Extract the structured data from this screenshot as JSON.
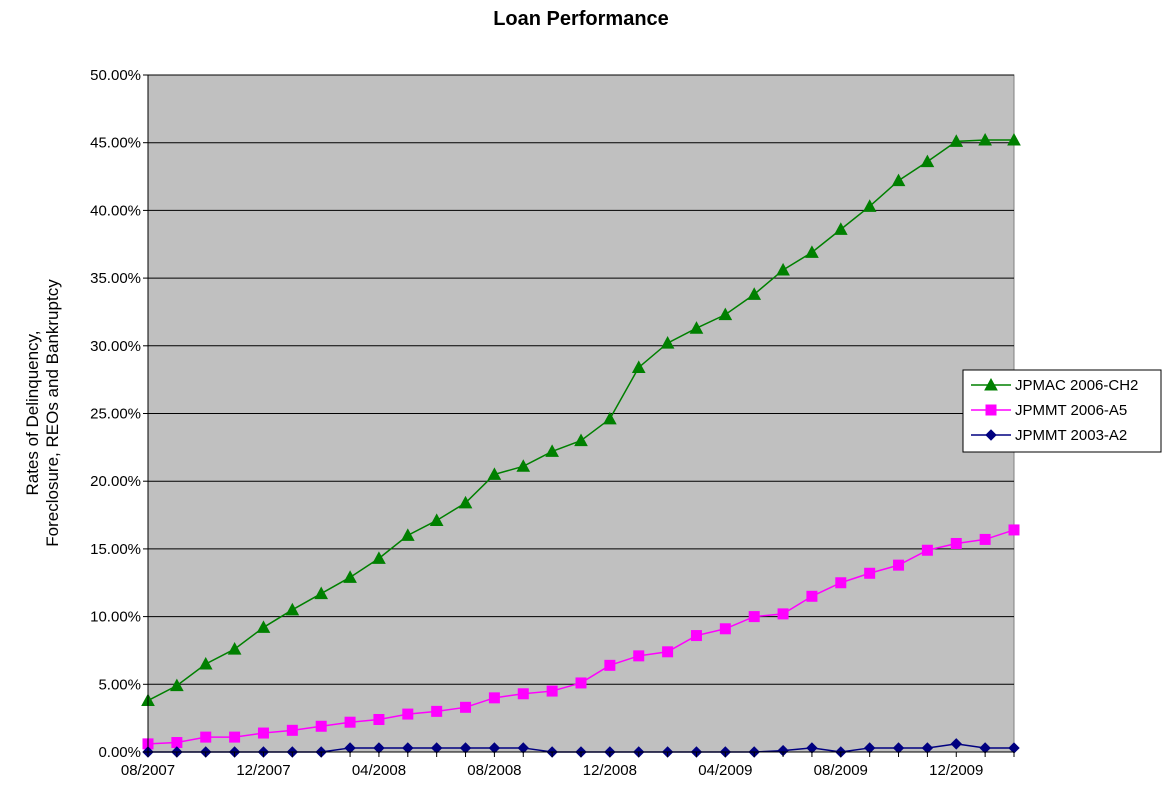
{
  "chart_data": {
    "type": "line",
    "title": "Loan Performance",
    "xlabel": "",
    "ylabel_lines": [
      "Rates of Delinquency,",
      "Foreclosure, REOs and Bankruptcy"
    ],
    "y_ticks": [
      "0.00%",
      "5.00%",
      "10.00%",
      "15.00%",
      "20.00%",
      "25.00%",
      "30.00%",
      "35.00%",
      "40.00%",
      "45.00%",
      "50.00%"
    ],
    "ylim": [
      0,
      50
    ],
    "x_tick_labels": [
      "08/2007",
      "12/2007",
      "04/2008",
      "08/2008",
      "12/2008",
      "04/2009",
      "08/2009",
      "12/2009"
    ],
    "x_tick_every": 4,
    "grid": true,
    "legend": "right",
    "plot_background": "#c0c0c0",
    "x": [
      "08/2007",
      "09/2007",
      "10/2007",
      "11/2007",
      "12/2007",
      "01/2008",
      "02/2008",
      "03/2008",
      "04/2008",
      "05/2008",
      "06/2008",
      "07/2008",
      "08/2008",
      "09/2008",
      "10/2008",
      "11/2008",
      "12/2008",
      "01/2009",
      "02/2009",
      "03/2009",
      "04/2009",
      "05/2009",
      "06/2009",
      "07/2009",
      "08/2009",
      "09/2009",
      "10/2009",
      "11/2009",
      "12/2009",
      "01/2010",
      "02/2010"
    ],
    "series": [
      {
        "name": "JPMAC 2006-CH2",
        "color": "#008000",
        "marker": "triangle",
        "values": [
          3.8,
          4.9,
          6.5,
          7.6,
          9.2,
          10.5,
          11.7,
          12.9,
          14.3,
          16.0,
          17.1,
          18.4,
          20.5,
          21.1,
          22.2,
          23.0,
          24.6,
          28.4,
          30.2,
          31.3,
          32.3,
          33.8,
          35.6,
          36.9,
          38.6,
          40.3,
          42.2,
          43.6,
          45.1,
          45.2,
          45.2
        ]
      },
      {
        "name": "JPMMT 2006-A5",
        "color": "#ff00ff",
        "marker": "square",
        "values": [
          0.6,
          0.7,
          1.1,
          1.1,
          1.4,
          1.6,
          1.9,
          2.2,
          2.4,
          2.8,
          3.0,
          3.3,
          4.0,
          4.3,
          4.5,
          5.1,
          6.4,
          7.1,
          7.4,
          8.6,
          9.1,
          10.0,
          10.2,
          11.5,
          12.5,
          13.2,
          13.8,
          14.9,
          15.4,
          15.7,
          16.4
        ]
      },
      {
        "name": "JPMMT 2003-A2",
        "color": "#000080",
        "marker": "diamond",
        "values": [
          0.0,
          0.0,
          0.0,
          0.0,
          0.0,
          0.0,
          0.0,
          0.3,
          0.3,
          0.3,
          0.3,
          0.3,
          0.3,
          0.3,
          0.0,
          0.0,
          0.0,
          0.0,
          0.0,
          0.0,
          0.0,
          0.0,
          0.1,
          0.3,
          0.0,
          0.3,
          0.3,
          0.3,
          0.6,
          0.3,
          0.3
        ]
      }
    ]
  }
}
